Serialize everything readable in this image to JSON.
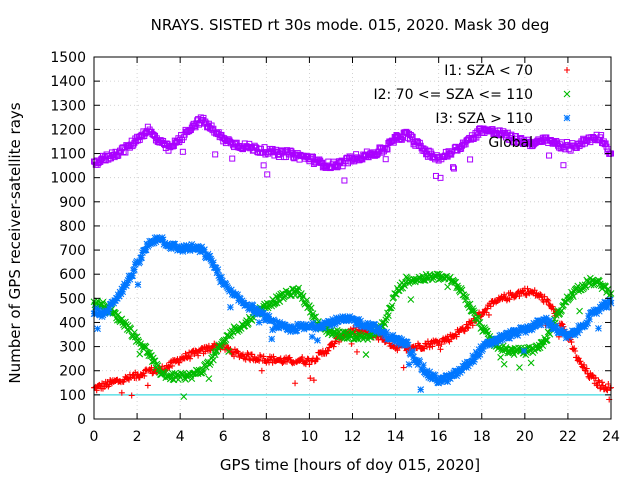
{
  "chart_data": {
    "type": "scatter",
    "title": "NRAYS. SISTED rt 30s mode. 015, 2020. Mask 30 deg",
    "xlabel": "GPS time [hours of doy 015, 2020]",
    "ylabel": "Number of GPS receiver-satellite rays",
    "xlim": [
      0,
      24
    ],
    "ylim": [
      0,
      1500
    ],
    "xticks": [
      "0",
      "2",
      "4",
      "6",
      "8",
      "10",
      "12",
      "14",
      "16",
      "18",
      "20",
      "22",
      "24"
    ],
    "yticks": [
      "0",
      "100",
      "200",
      "300",
      "400",
      "500",
      "600",
      "700",
      "800",
      "900",
      "1000",
      "1100",
      "1200",
      "1300",
      "1400",
      "1500"
    ],
    "grid": true,
    "legend_position": "top-right",
    "reference_line": {
      "y": 100,
      "color": "#3fd8e0"
    },
    "series": [
      {
        "name": "I1: SZA < 70",
        "marker": "+",
        "color": "#ff0000",
        "x": [
          0,
          0.5,
          1,
          1.5,
          2,
          2.5,
          3,
          3.5,
          4,
          4.5,
          5,
          5.5,
          6,
          6.5,
          7,
          7.5,
          8,
          8.5,
          9,
          9.5,
          10,
          10.5,
          11,
          11.5,
          12,
          12.5,
          13,
          13.5,
          14,
          14.5,
          15,
          15.5,
          16,
          16.5,
          17,
          17.5,
          18,
          18.5,
          19,
          19.5,
          20,
          20.5,
          21,
          21.5,
          22,
          22.5,
          23,
          23.5,
          24
        ],
        "y": [
          125,
          140,
          155,
          165,
          180,
          200,
          200,
          220,
          250,
          265,
          280,
          300,
          300,
          275,
          260,
          255,
          248,
          245,
          240,
          245,
          240,
          265,
          300,
          345,
          365,
          360,
          350,
          330,
          300,
          295,
          300,
          310,
          320,
          335,
          365,
          395,
          440,
          475,
          500,
          515,
          530,
          520,
          490,
          430,
          340,
          240,
          180,
          140,
          130
        ]
      },
      {
        "name": "I2: 70 <= SZA <= 110",
        "marker": "x",
        "color": "#00bb00",
        "x": [
          0,
          0.5,
          1,
          1.5,
          2,
          2.5,
          3,
          3.5,
          4,
          4.5,
          5,
          5.5,
          6,
          6.5,
          7,
          7.5,
          8,
          8.5,
          9,
          9.5,
          10,
          10.5,
          11,
          11.5,
          12,
          12.5,
          13,
          13.5,
          14,
          14.5,
          15,
          15.5,
          16,
          16.5,
          17,
          17.5,
          18,
          18.5,
          19,
          19.5,
          20,
          20.5,
          21,
          21.5,
          22,
          22.5,
          23,
          23.5,
          24
        ],
        "y": [
          480,
          470,
          430,
          390,
          330,
          280,
          200,
          175,
          175,
          180,
          200,
          250,
          320,
          370,
          390,
          440,
          470,
          495,
          520,
          530,
          460,
          380,
          360,
          350,
          345,
          340,
          350,
          400,
          520,
          575,
          580,
          585,
          590,
          580,
          540,
          460,
          380,
          320,
          290,
          280,
          280,
          290,
          330,
          430,
          500,
          540,
          570,
          560,
          520
        ]
      },
      {
        "name": "I3: SZA > 110",
        "marker": "*",
        "color": "#0077ff",
        "x": [
          0,
          0.5,
          1,
          1.5,
          2,
          2.5,
          3,
          3.5,
          4,
          4.5,
          5,
          5.5,
          6,
          6.5,
          7,
          7.5,
          8,
          8.5,
          9,
          9.5,
          10,
          10.5,
          11,
          11.5,
          12,
          12.5,
          13,
          13.5,
          14,
          14.5,
          15,
          15.5,
          16,
          16.5,
          17,
          17.5,
          18,
          18.5,
          19,
          19.5,
          20,
          20.5,
          21,
          21.5,
          22,
          22.5,
          23,
          23.5,
          24
        ],
        "y": [
          450,
          430,
          500,
          560,
          640,
          720,
          755,
          720,
          705,
          710,
          700,
          650,
          560,
          510,
          480,
          450,
          420,
          390,
          370,
          380,
          380,
          390,
          400,
          410,
          410,
          395,
          380,
          350,
          330,
          310,
          240,
          185,
          160,
          170,
          200,
          240,
          290,
          320,
          340,
          355,
          370,
          390,
          410,
          370,
          340,
          370,
          420,
          460,
          480
        ]
      },
      {
        "name": "Global",
        "marker": "square",
        "color": "#aa00ff",
        "x": [
          0,
          0.5,
          1,
          1.5,
          2,
          2.5,
          3,
          3.5,
          4,
          4.5,
          5,
          5.5,
          6,
          6.5,
          7,
          7.5,
          8,
          8.5,
          9,
          9.5,
          10,
          10.5,
          11,
          11.5,
          12,
          12.5,
          13,
          13.5,
          14,
          14.5,
          15,
          15.5,
          16,
          16.5,
          17,
          17.5,
          18,
          18.5,
          19,
          19.5,
          20,
          20.5,
          21,
          21.5,
          22,
          22.5,
          23,
          23.5,
          24
        ],
        "y": [
          1060,
          1080,
          1100,
          1120,
          1160,
          1200,
          1150,
          1120,
          1160,
          1210,
          1240,
          1200,
          1160,
          1140,
          1130,
          1120,
          1110,
          1100,
          1100,
          1090,
          1080,
          1060,
          1050,
          1060,
          1080,
          1090,
          1100,
          1120,
          1160,
          1180,
          1140,
          1100,
          1080,
          1100,
          1130,
          1160,
          1200,
          1190,
          1180,
          1160,
          1150,
          1140,
          1160,
          1140,
          1120,
          1140,
          1160,
          1170,
          1100
        ]
      }
    ]
  }
}
